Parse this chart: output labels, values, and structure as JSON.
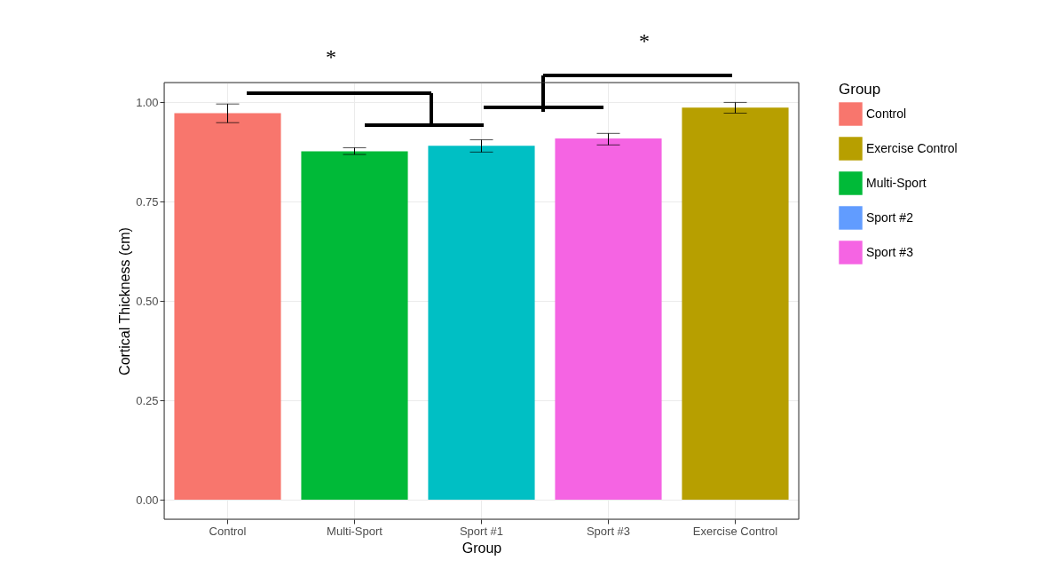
{
  "chart_data": {
    "type": "bar",
    "xlabel": "Group",
    "ylabel": "Cortical Thickness (cm)",
    "legend_title": "Group",
    "categories": [
      "Control",
      "Multi-Sport",
      "Sport #1",
      "Sport #3",
      "Exercise Control"
    ],
    "series": [
      {
        "name": "Control",
        "color": "#f8766d",
        "values": [
          0.973,
          null,
          null,
          null,
          null
        ],
        "errors": [
          [
            0.949,
            0.996
          ],
          null,
          null,
          null,
          null
        ]
      },
      {
        "name": "Exercise Control",
        "color": "#b79f00",
        "values": [
          null,
          null,
          null,
          null,
          0.987
        ],
        "errors": [
          null,
          null,
          null,
          null,
          [
            0.973,
            1.0
          ]
        ]
      },
      {
        "name": "Multi-Sport",
        "color": "#00ba38",
        "values": [
          null,
          0.877,
          null,
          null,
          null
        ],
        "errors": [
          null,
          [
            0.869,
            0.886
          ],
          null,
          null,
          null
        ]
      },
      {
        "name": "Sport #2",
        "color": "#619cff",
        "values": [
          null,
          null,
          null,
          null,
          null
        ]
      },
      {
        "name": "Sport #3",
        "color": "#f564e3",
        "values": [
          null,
          null,
          null,
          0.909,
          null
        ],
        "errors": [
          null,
          null,
          null,
          [
            0.893,
            0.922
          ],
          null
        ]
      },
      {
        "color": "#00bfc4",
        "values": [
          null,
          null,
          0.891,
          null,
          null
        ],
        "errors": [
          null,
          null,
          [
            0.875,
            0.906
          ],
          null,
          null
        ]
      }
    ],
    "ylim": [
      -0.049,
      1.05
    ],
    "yticks": [
      {
        "value": 0,
        "label": "0.00"
      },
      {
        "value": 0.25,
        "label": "0.25"
      },
      {
        "value": 0.5,
        "label": "0.50"
      },
      {
        "value": 0.75,
        "label": "0.75"
      },
      {
        "value": 1,
        "label": "1.00"
      }
    ],
    "grid": true,
    "legend": "right",
    "annotations": [
      "*",
      "*"
    ]
  }
}
